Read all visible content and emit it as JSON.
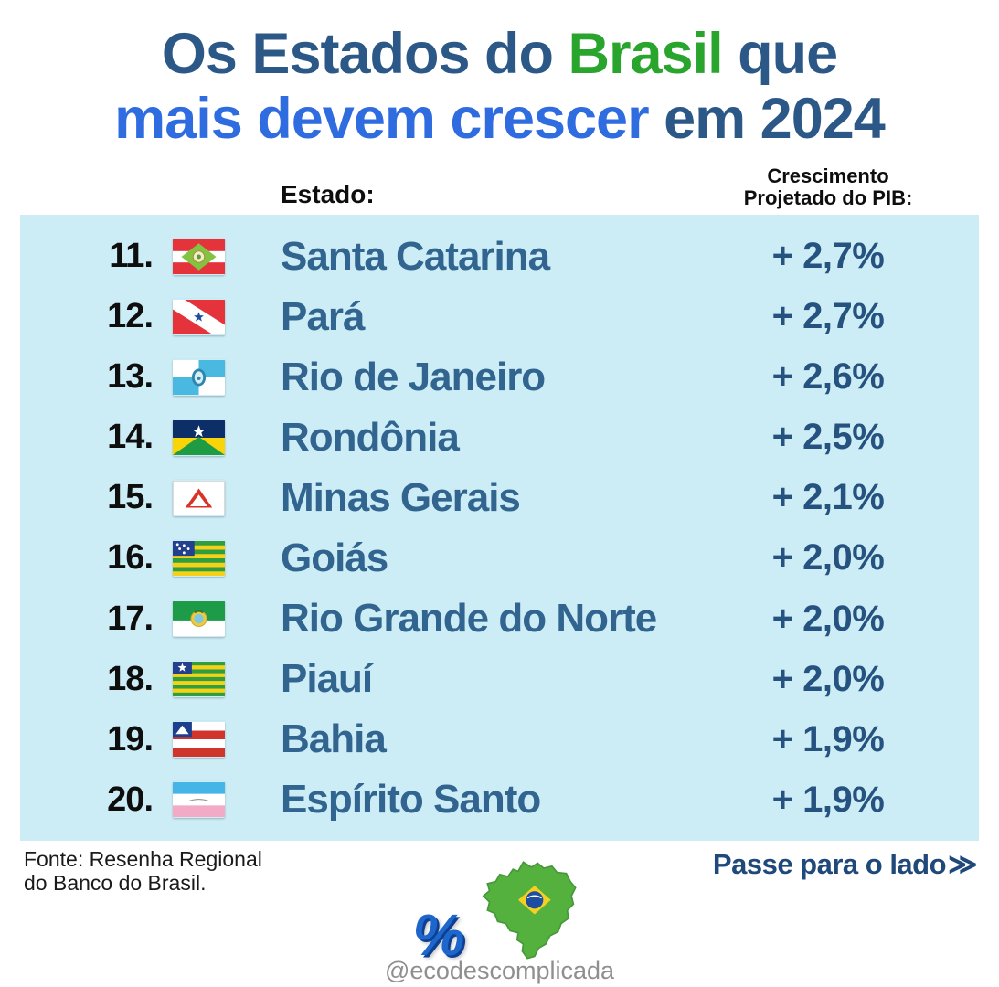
{
  "title": {
    "line1_part1": "Os Estados do ",
    "line1_brasil": "Brasil",
    "line1_part3": " que",
    "line2_highlight": "mais devem crescer",
    "line2_part2": " em 2024"
  },
  "colors": {
    "title_dark_blue": "#2c5888",
    "title_green": "#29a52e",
    "title_bright_blue": "#2f6ce0",
    "table_background": "#cdedf6",
    "state_text": "#31648f",
    "growth_text": "#26527f",
    "swipe_text": "#20497b",
    "handle_text": "#8f8f8f"
  },
  "table": {
    "header_estado": "Estado:",
    "header_crescimento_line1": "Crescimento",
    "header_crescimento_line2": "Projetado do PIB:",
    "rows": [
      {
        "rank": "11.",
        "flag": "santa-catarina",
        "state": "Santa Catarina",
        "growth": "+ 2,7%"
      },
      {
        "rank": "12.",
        "flag": "para",
        "state": "Pará",
        "growth": "+ 2,7%"
      },
      {
        "rank": "13.",
        "flag": "rio-de-janeiro",
        "state": "Rio de Janeiro",
        "growth": "+ 2,6%"
      },
      {
        "rank": "14.",
        "flag": "rondonia",
        "state": "Rondônia",
        "growth": "+ 2,5%"
      },
      {
        "rank": "15.",
        "flag": "minas-gerais",
        "state": "Minas Gerais",
        "growth": "+ 2,1%"
      },
      {
        "rank": "16.",
        "flag": "goias",
        "state": "Goiás",
        "growth": "+ 2,0%"
      },
      {
        "rank": "17.",
        "flag": "rio-grande-do-norte",
        "state": "Rio Grande do Norte",
        "growth": "+ 2,0%"
      },
      {
        "rank": "18.",
        "flag": "piaui",
        "state": "Piauí",
        "growth": "+ 2,0%"
      },
      {
        "rank": "19.",
        "flag": "bahia",
        "state": "Bahia",
        "growth": "+ 1,9%"
      },
      {
        "rank": "20.",
        "flag": "espirito-santo",
        "state": "Espírito Santo",
        "growth": "+ 1,9%"
      }
    ]
  },
  "footer": {
    "source_line1": "Fonte: Resenha Regional",
    "source_line2": "do Banco do Brasil.",
    "swipe_label": "Passe para o lado",
    "swipe_arrows": "≫"
  },
  "branding": {
    "percent_glyph": "%",
    "handle": "@ecodescomplicada"
  },
  "chart_data": {
    "type": "table",
    "title": "Os Estados do Brasil que mais devem crescer em 2024",
    "columns": [
      "Rank",
      "Estado",
      "Crescimento Projetado do PIB"
    ],
    "rows": [
      [
        11,
        "Santa Catarina",
        "+ 2,7%"
      ],
      [
        12,
        "Pará",
        "+ 2,7%"
      ],
      [
        13,
        "Rio de Janeiro",
        "+ 2,6%"
      ],
      [
        14,
        "Rondônia",
        "+ 2,5%"
      ],
      [
        15,
        "Minas Gerais",
        "+ 2,1%"
      ],
      [
        16,
        "Goiás",
        "+ 2,0%"
      ],
      [
        17,
        "Rio Grande do Norte",
        "+ 2,0%"
      ],
      [
        18,
        "Piauí",
        "+ 2,0%"
      ],
      [
        19,
        "Bahia",
        "+ 1,9%"
      ],
      [
        20,
        "Espírito Santo",
        "+ 1,9%"
      ]
    ],
    "values_numeric_pct": [
      2.7,
      2.7,
      2.6,
      2.5,
      2.1,
      2.0,
      2.0,
      2.0,
      1.9,
      1.9
    ],
    "source": "Fonte: Resenha Regional do Banco do Brasil."
  }
}
